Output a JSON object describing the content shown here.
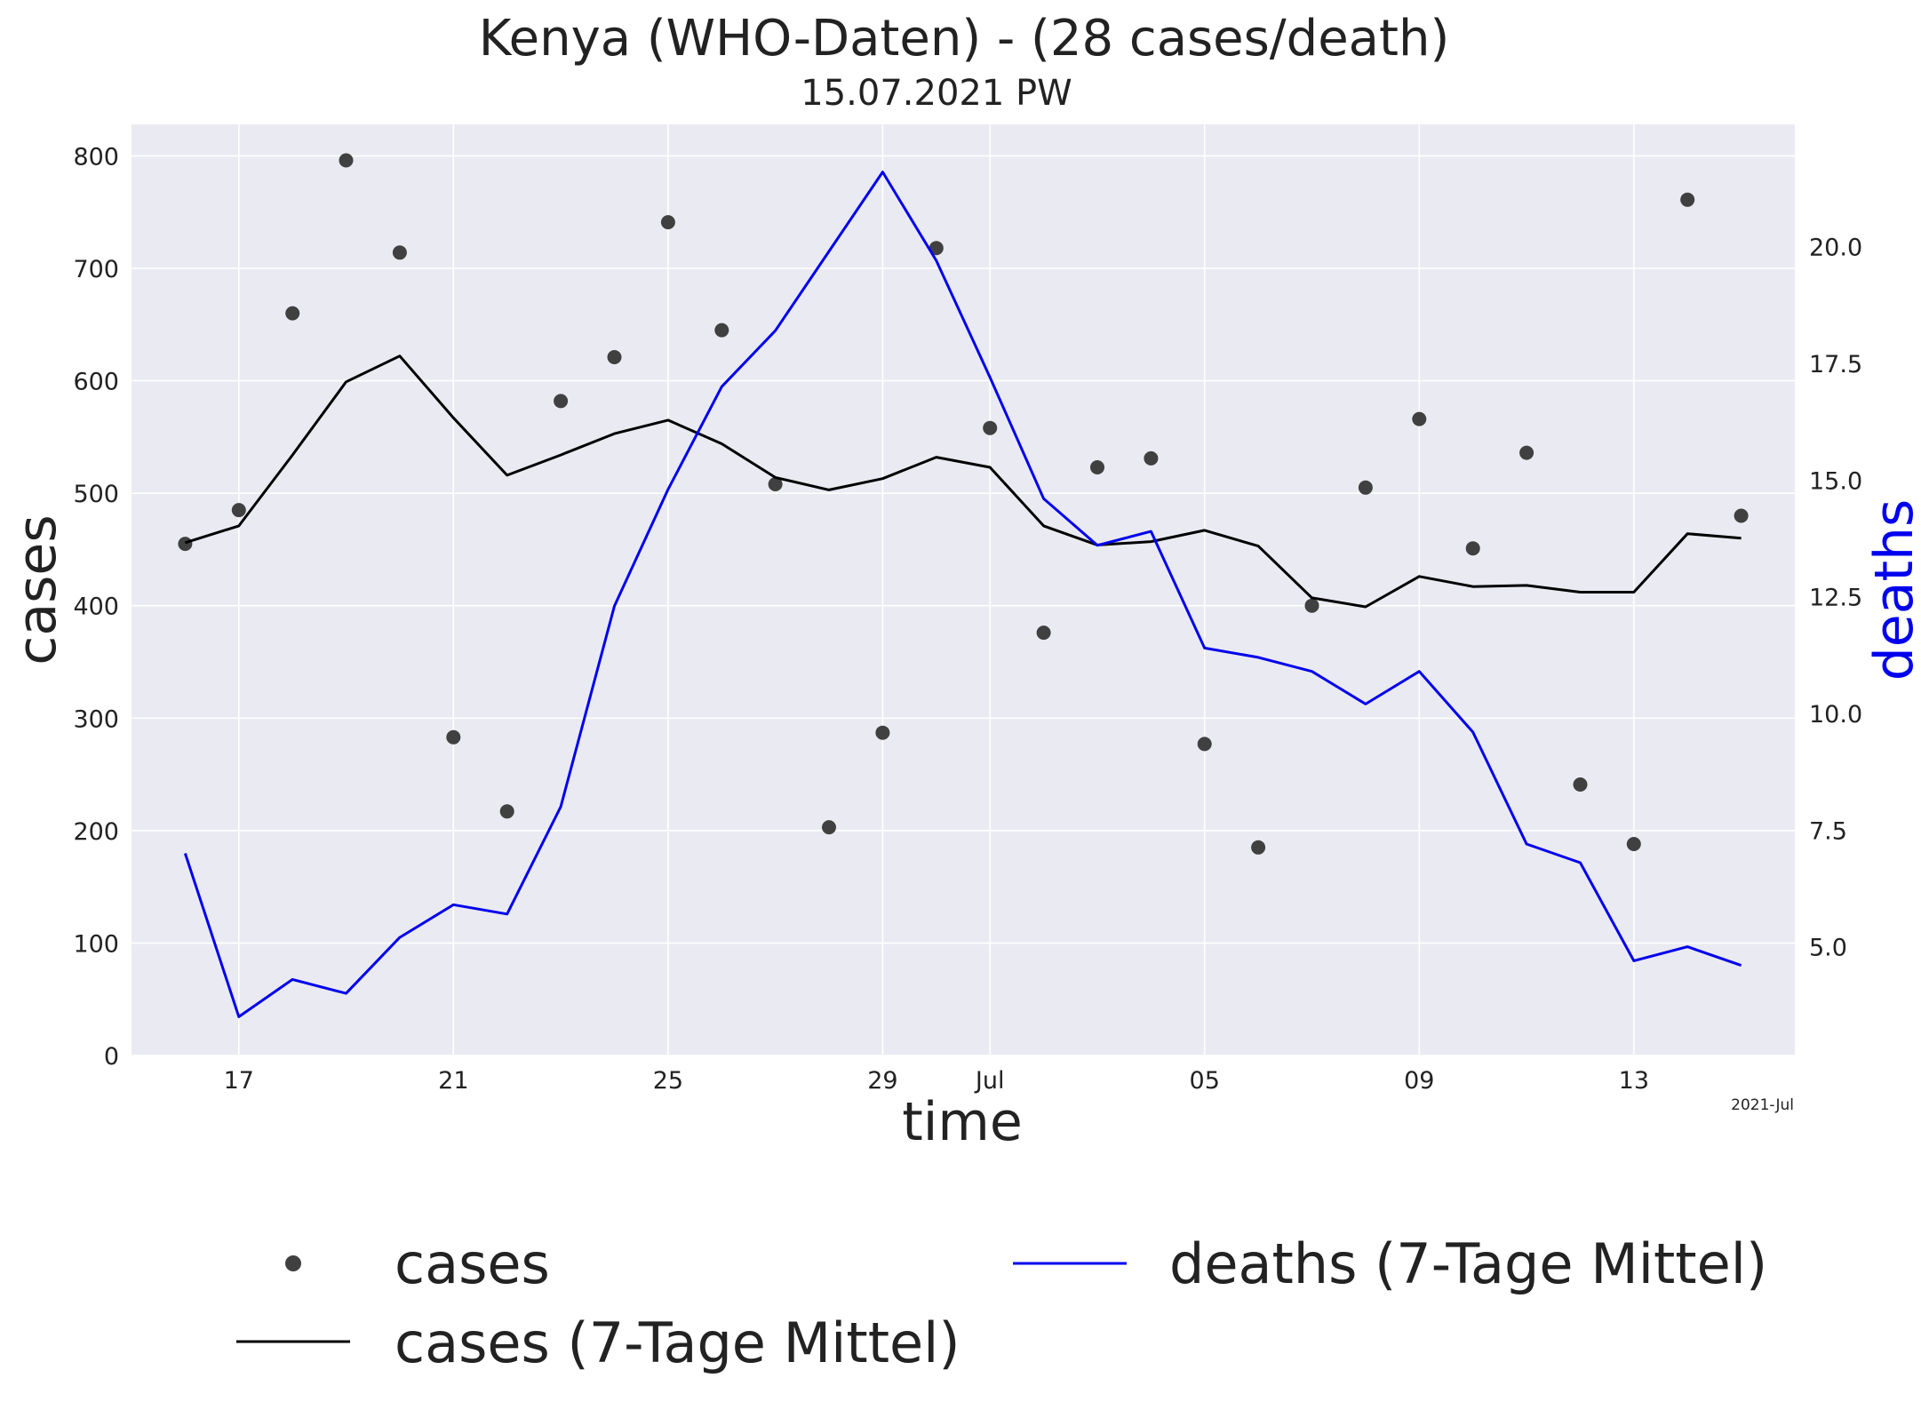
{
  "chart_data": {
    "type": "line",
    "title": "Kenya (WHO-Daten) - (28 cases/death)",
    "subtitle": "15.07.2021 PW",
    "xlabel": "time",
    "ylabel": "cases",
    "y2label": "deaths",
    "x_corner_label": "2021-Jul",
    "x": [
      "2021-06-16",
      "2021-06-17",
      "2021-06-18",
      "2021-06-19",
      "2021-06-20",
      "2021-06-21",
      "2021-06-22",
      "2021-06-23",
      "2021-06-24",
      "2021-06-25",
      "2021-06-26",
      "2021-06-27",
      "2021-06-28",
      "2021-06-29",
      "2021-06-30",
      "2021-07-01",
      "2021-07-02",
      "2021-07-03",
      "2021-07-04",
      "2021-07-05",
      "2021-07-06",
      "2021-07-07",
      "2021-07-08",
      "2021-07-09",
      "2021-07-10",
      "2021-07-11",
      "2021-07-12",
      "2021-07-13",
      "2021-07-14",
      "2021-07-15"
    ],
    "x_ticks": [
      {
        "date": "2021-06-17",
        "label": "17"
      },
      {
        "date": "2021-06-21",
        "label": "21"
      },
      {
        "date": "2021-06-25",
        "label": "25"
      },
      {
        "date": "2021-06-29",
        "label": "29"
      },
      {
        "date": "2021-07-01",
        "label": "Jul"
      },
      {
        "date": "2021-07-05",
        "label": "05"
      },
      {
        "date": "2021-07-09",
        "label": "09"
      },
      {
        "date": "2021-07-13",
        "label": "13"
      }
    ],
    "xlim": [
      "2021-06-15",
      "2021-07-16"
    ],
    "ylim": [
      0,
      828
    ],
    "y_ticks": [
      0,
      100,
      200,
      300,
      400,
      500,
      600,
      700,
      800
    ],
    "y2lim": [
      2.67,
      22.62
    ],
    "y2_ticks": [
      "5.0",
      "7.5",
      "10.0",
      "12.5",
      "15.0",
      "17.5",
      "20.0"
    ],
    "grid": true,
    "series": [
      {
        "name": "cases",
        "axis": "left",
        "style": "scatter",
        "color": "#404040",
        "values": [
          455,
          485,
          660,
          796,
          714,
          283,
          217,
          582,
          621,
          741,
          645,
          508,
          203,
          287,
          718,
          558,
          376,
          523,
          531,
          277,
          185,
          400,
          505,
          566,
          451,
          536,
          241,
          188,
          761,
          480
        ]
      },
      {
        "name": "cases (7-Tage Mittel)",
        "axis": "left",
        "style": "line",
        "color": "#000000",
        "values": [
          456,
          471,
          534,
          599,
          622,
          567,
          516,
          534,
          553,
          565,
          544,
          514,
          503,
          513,
          532,
          523,
          471,
          454,
          457,
          467,
          453,
          407,
          399,
          426,
          417,
          418,
          412,
          412,
          464,
          460
        ]
      },
      {
        "name": "deaths (7-Tage Mittel)",
        "axis": "right",
        "style": "line",
        "color": "#0000ee",
        "values": [
          7.0,
          3.5,
          4.3,
          4.0,
          5.2,
          5.9,
          5.7,
          8.0,
          12.3,
          14.8,
          17.0,
          18.2,
          19.9,
          21.6,
          19.7,
          17.2,
          14.6,
          13.6,
          13.9,
          11.4,
          11.2,
          10.9,
          10.2,
          10.9,
          9.6,
          7.2,
          6.8,
          4.7,
          5.0,
          4.6
        ]
      }
    ],
    "legend": {
      "placement": "bottom",
      "entries": [
        {
          "label": "cases",
          "marker": "dot"
        },
        {
          "label": "cases (7-Tage Mittel)",
          "marker": "line"
        },
        {
          "label": "deaths (7-Tage Mittel)",
          "marker": "line"
        }
      ]
    },
    "colors": {
      "plot_background": "#eaeaf2",
      "grid": "#ffffff",
      "deaths_axis_label": "#0000ee"
    }
  }
}
